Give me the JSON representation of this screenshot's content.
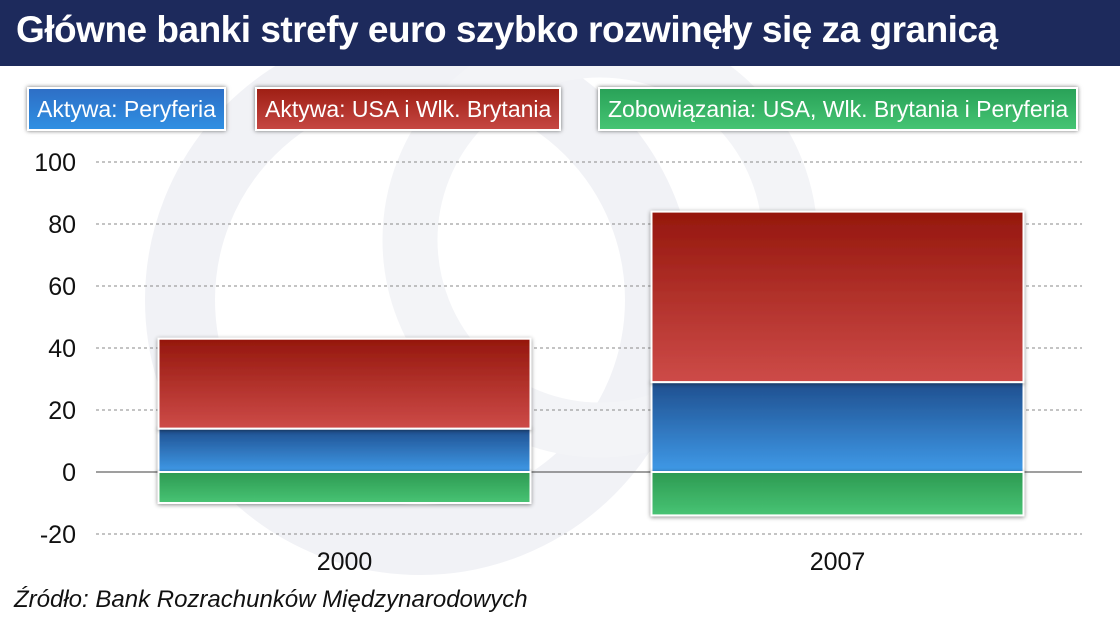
{
  "header": {
    "title": "Główne banki strefy euro szybko rozwinęły się za granicą"
  },
  "legend": {
    "items": [
      {
        "label": "Aktywa: Peryferia",
        "color": "#2f80d6"
      },
      {
        "label": "Aktywa: USA i Wlk. Brytania",
        "color": "#b3302a"
      },
      {
        "label": "Zobowiązania: USA, Wlk. Brytania i Peryferia",
        "color": "#3bb568"
      }
    ]
  },
  "chart_data": {
    "type": "bar",
    "stacked": true,
    "categories": [
      "2000",
      "2007"
    ],
    "series": [
      {
        "name": "Aktywa: Peryferia",
        "values": [
          14,
          29
        ],
        "color": "#2f80d6"
      },
      {
        "name": "Aktywa: USA i Wlk. Brytania",
        "values": [
          29,
          55
        ],
        "color": "#b3302a"
      },
      {
        "name": "Zobowiązania: USA, Wlk. Brytania i Peryferia",
        "values": [
          -10,
          -14
        ],
        "color": "#3bb568"
      }
    ],
    "ylim": [
      -20,
      100
    ],
    "yticks": [
      "-20",
      "0",
      "20",
      "40",
      "60",
      "80",
      "100"
    ],
    "grid": true,
    "legend_position": "top"
  },
  "footer": {
    "source": "Źródło: Bank  Rozrachunków Międzynarodowych"
  }
}
